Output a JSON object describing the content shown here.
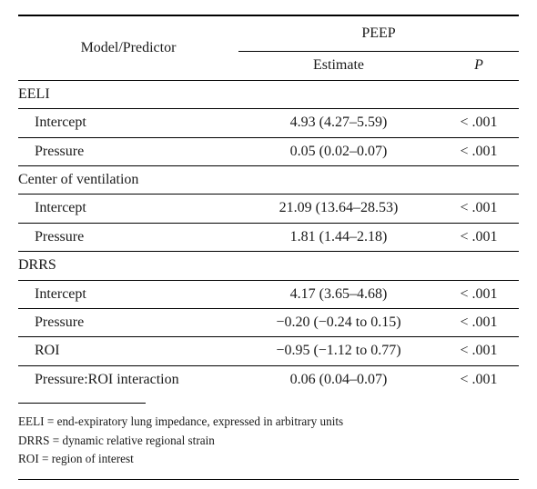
{
  "header": {
    "model_predictor": "Model/Predictor",
    "peep": "PEEP",
    "estimate": "Estimate",
    "p": "P"
  },
  "groups": [
    {
      "label": "EELI",
      "rows": [
        {
          "predictor": "Intercept",
          "estimate": "4.93 (4.27–5.59)",
          "p_prefix": "<",
          "p_value": " .001"
        },
        {
          "predictor": "Pressure",
          "estimate": "0.05 (0.02–0.07)",
          "p_prefix": "<",
          "p_value": " .001"
        }
      ]
    },
    {
      "label": "Center of ventilation",
      "rows": [
        {
          "predictor": "Intercept",
          "estimate": "21.09 (13.64–28.53)",
          "p_prefix": "<",
          "p_value": " .001"
        },
        {
          "predictor": "Pressure",
          "estimate": "1.81 (1.44–2.18)",
          "p_prefix": "<",
          "p_value": " .001"
        }
      ]
    },
    {
      "label": "DRRS",
      "rows": [
        {
          "predictor": "Intercept",
          "estimate": "4.17 (3.65–4.68)",
          "p_prefix": "<",
          "p_value": " .001"
        },
        {
          "predictor": "Pressure",
          "estimate": "−0.20 (−0.24 to 0.15)",
          "p_prefix": "<",
          "p_value": " .001"
        },
        {
          "predictor": "ROI",
          "estimate": "−0.95 (−1.12 to 0.77)",
          "p_prefix": "<",
          "p_value": " .001"
        },
        {
          "predictor": "Pressure:ROI interaction",
          "estimate": "0.06 (0.04–0.07)",
          "p_prefix": "<",
          "p_value": " .001"
        }
      ]
    }
  ],
  "footnotes": [
    "EELI = end-expiratory lung impedance, expressed in arbitrary units",
    "DRRS = dynamic relative regional strain",
    "ROI = region of interest"
  ],
  "style": {
    "font_family": "Times New Roman",
    "body_fontsize_pt": 12,
    "foot_fontsize_pt": 10,
    "text_color": "#1a1a1a",
    "background": "#ffffff",
    "col_widths_pct": [
      44,
      40,
      16
    ]
  }
}
